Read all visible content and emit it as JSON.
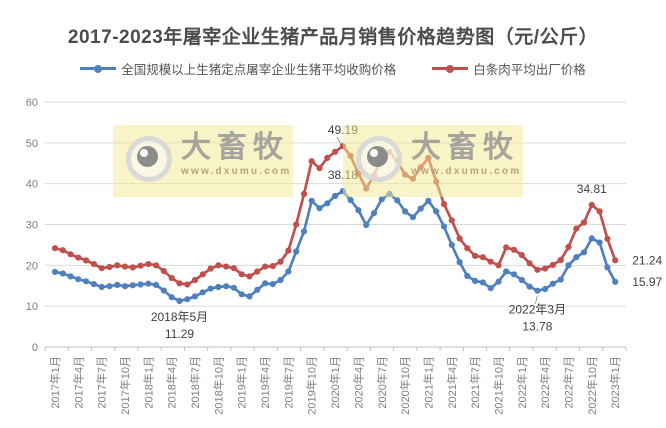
{
  "title": "2017-2023年屠宰企业生猪产品月销售价格趋势图（元/公斤）",
  "legend": [
    {
      "label": "全国规模以上生猪定点屠宰企业生猪平均收购价格",
      "color": "#4F81BD"
    },
    {
      "label": "白条肉平均出厂价格",
      "color": "#C0504D"
    }
  ],
  "watermark": {
    "name": "大畜牧",
    "url": "www.dxumu.com"
  },
  "colors": {
    "blue_series": "#4F81BD",
    "red_series": "#C0504D",
    "grid": "#D9D9D9",
    "axis": "#BFBFBF",
    "tick_label": "#7F7F7F",
    "annotation": "#3F3F3F",
    "title_text": "#4C4C4C",
    "watermark_bg": "#F2E994"
  },
  "chart_data": {
    "type": "line",
    "title": "2017-2023年屠宰企业生猪产品月销售价格趋势图（元/公斤）",
    "xlabel": "",
    "ylabel": "元/公斤",
    "ylim": [
      0,
      60
    ],
    "yticks": [
      0,
      10,
      20,
      30,
      40,
      50,
      60
    ],
    "grid": true,
    "legend_position": "top",
    "x_tick_labels": [
      "2017年1月",
      "2017年4月",
      "2017年7月",
      "2017年10月",
      "2018年1月",
      "2018年4月",
      "2018年7月",
      "2018年10月",
      "2019年1月",
      "2019年4月",
      "2019年7月",
      "2019年10月",
      "2020年1月",
      "2020年4月",
      "2020年7月",
      "2020年10月",
      "2021年1月",
      "2021年4月",
      "2021年7月",
      "2021年10月",
      "2022年1月",
      "2022年4月",
      "2022年7月",
      "2022年10月",
      "2023年1月"
    ],
    "x_months_per_tick": 3,
    "x_total_months": 73,
    "series": [
      {
        "name": "全国规模以上生猪定点屠宰企业生猪平均收购价格",
        "color": "#4F81BD",
        "values": [
          18.4,
          18.0,
          17.3,
          16.6,
          16.1,
          15.4,
          14.7,
          14.9,
          15.2,
          14.9,
          15.1,
          15.3,
          15.5,
          15.2,
          13.8,
          12.2,
          11.29,
          11.7,
          12.4,
          13.4,
          14.3,
          14.7,
          14.9,
          14.5,
          12.9,
          12.4,
          14.0,
          15.6,
          15.4,
          16.4,
          18.5,
          23.4,
          28.3,
          35.8,
          34.0,
          35.2,
          37.0,
          38.18,
          36.0,
          33.5,
          29.9,
          32.8,
          36.2,
          37.5,
          35.9,
          33.2,
          31.8,
          33.9,
          35.8,
          33.2,
          29.5,
          25.0,
          20.8,
          17.4,
          16.2,
          15.8,
          14.4,
          16.0,
          18.5,
          17.8,
          16.4,
          14.8,
          13.78,
          14.2,
          15.5,
          16.5,
          20.0,
          22.0,
          23.2,
          26.6,
          25.6,
          19.5,
          15.97
        ]
      },
      {
        "name": "白条肉平均出厂价格",
        "color": "#C0504D",
        "values": [
          24.2,
          23.7,
          22.7,
          21.9,
          21.2,
          20.3,
          19.3,
          19.6,
          20.0,
          19.7,
          19.5,
          19.9,
          20.3,
          20.0,
          18.6,
          16.9,
          15.6,
          15.3,
          16.4,
          17.8,
          19.2,
          20.0,
          19.7,
          19.3,
          17.8,
          17.3,
          18.5,
          19.7,
          19.8,
          20.9,
          23.6,
          30.0,
          37.5,
          45.5,
          43.8,
          46.3,
          47.8,
          49.19,
          46.8,
          42.5,
          38.8,
          42.0,
          46.5,
          47.8,
          45.5,
          42.2,
          41.2,
          44.0,
          46.3,
          40.5,
          35.0,
          31.0,
          26.6,
          24.2,
          22.3,
          22.0,
          20.9,
          20.0,
          24.4,
          23.8,
          22.5,
          20.5,
          18.9,
          19.2,
          20.1,
          21.3,
          24.5,
          29.0,
          30.5,
          34.81,
          33.2,
          26.5,
          21.24
        ]
      }
    ],
    "annotations": [
      {
        "lines": [
          "49.19"
        ],
        "series": 1,
        "month": 37,
        "value": 49.19,
        "placement": "above",
        "leader": true
      },
      {
        "lines": [
          "38.18"
        ],
        "series": 0,
        "month": 37,
        "value": 38.18,
        "placement": "above"
      },
      {
        "lines": [
          "2018年5月",
          "11.29"
        ],
        "series": 0,
        "month": 16,
        "value": 11.29,
        "placement": "below",
        "dy": 20
      },
      {
        "lines": [
          "2022年3月",
          "13.78"
        ],
        "series": 0,
        "month": 62,
        "value": 13.78,
        "placement": "below",
        "dy": 23,
        "leader": true
      },
      {
        "lines": [
          "34.81"
        ],
        "series": 1,
        "month": 69,
        "value": 34.81,
        "placement": "above"
      },
      {
        "lines": [
          "21.24"
        ],
        "series": 1,
        "month": 72,
        "value": 21.24,
        "placement": "right"
      },
      {
        "lines": [
          "15.97"
        ],
        "series": 0,
        "month": 72,
        "value": 15.97,
        "placement": "right"
      }
    ]
  }
}
